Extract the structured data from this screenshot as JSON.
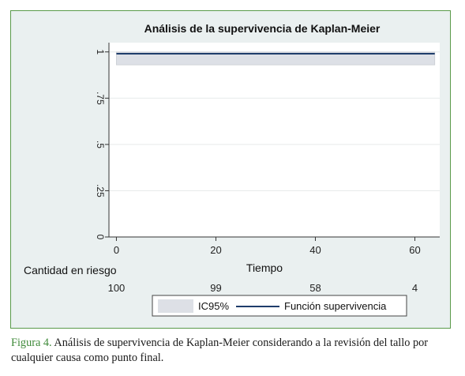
{
  "chart_data": {
    "type": "line",
    "title": "Análisis de la supervivencia de Kaplan-Meier",
    "xlabel": "Tiempo",
    "ylabel": "",
    "xlim": [
      -1.5,
      65
    ],
    "ylim": [
      0,
      1.05
    ],
    "x_ticks": [
      0,
      20,
      40,
      60
    ],
    "x_tick_labels": [
      "0",
      "20",
      "40",
      "60"
    ],
    "y_ticks": [
      0,
      0.25,
      0.5,
      0.75,
      1
    ],
    "y_tick_labels": [
      "0",
      ".25",
      ".5",
      ".75",
      "1"
    ],
    "grid": "horizontal",
    "series": [
      {
        "name": "Función supervivencia",
        "type": "line",
        "color": "#1f3d6b",
        "x": [
          0,
          64
        ],
        "y": [
          0.99,
          0.99
        ]
      },
      {
        "name": "IC95%",
        "type": "band",
        "color": "#dde0e6",
        "x": [
          0,
          64
        ],
        "lower": [
          0.93,
          0.93
        ],
        "upper": [
          0.999,
          0.999
        ]
      }
    ],
    "risk_table": {
      "label": "Cantidad en riesgo",
      "times": [
        0,
        20,
        40,
        60
      ],
      "values": [
        "100",
        "99",
        "58",
        "4"
      ]
    },
    "legend": {
      "position": "bottom",
      "items": [
        {
          "label": "IC95%",
          "kind": "band"
        },
        {
          "label": "Función supervivencia",
          "kind": "line"
        }
      ]
    }
  },
  "caption": {
    "label": "Figura 4.",
    "text": " Análisis de supervivencia de Kaplan-Meier considerando a la revisión del tallo por cualquier causa como punto final."
  }
}
